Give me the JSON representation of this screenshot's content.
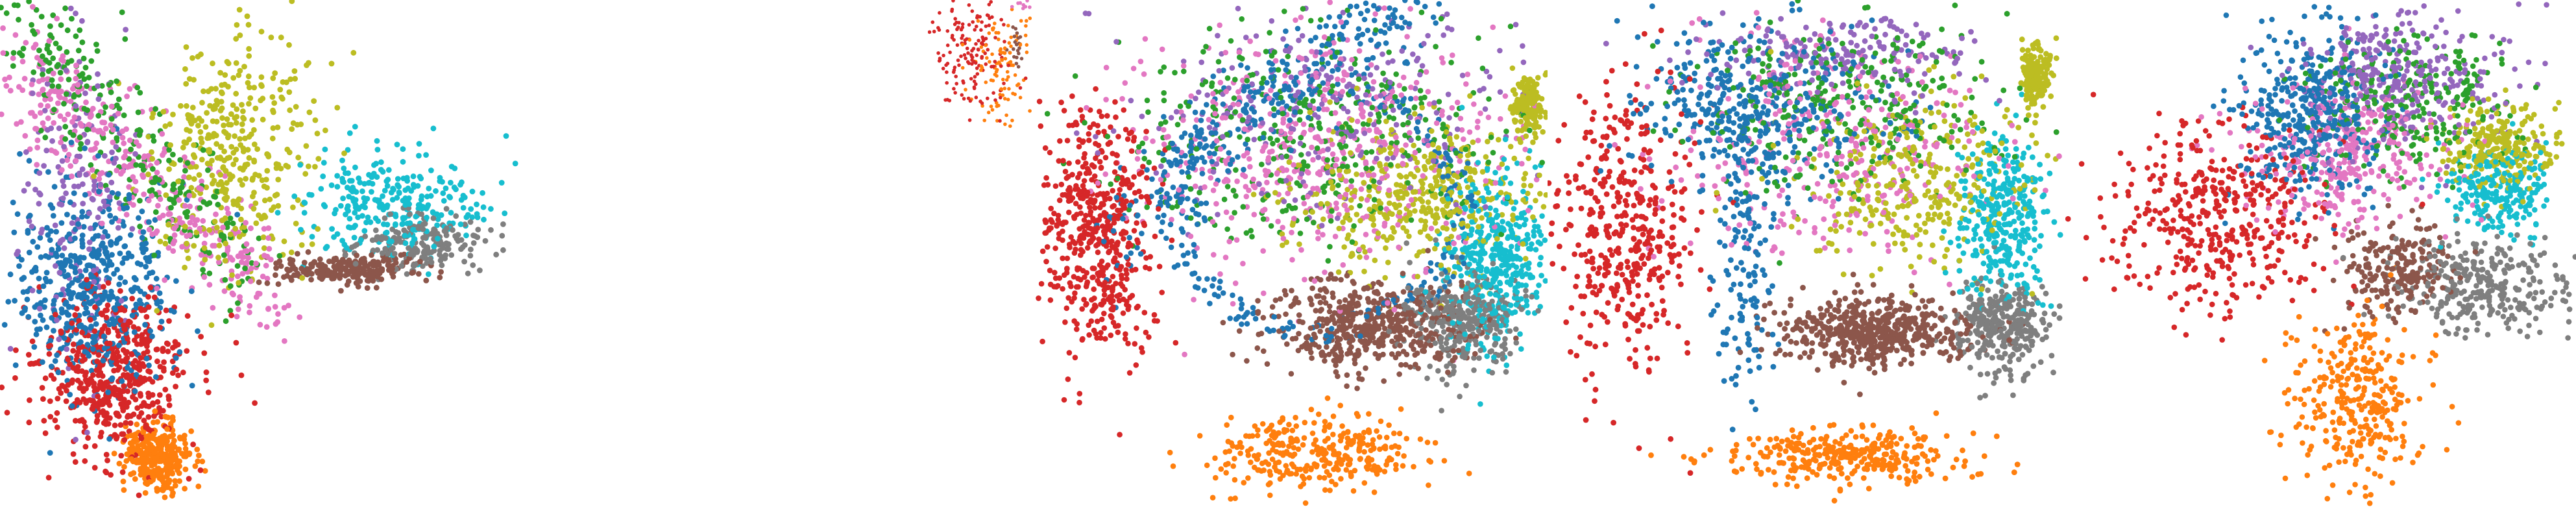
{
  "figure": {
    "background": "#ffffff",
    "axes_visible": false,
    "legend": "none",
    "grid": false
  },
  "chart_data": [
    {
      "type": "scatter",
      "xlim": [
        0,
        1
      ],
      "ylim": [
        0,
        1
      ],
      "groups": [
        {
          "color": "#bcbd22",
          "center": [
            0.45,
            0.3
          ],
          "spread": [
            0.14,
            0.2
          ],
          "shape": "blob",
          "count": 380
        },
        {
          "color": "#2ca02c",
          "center": [
            0.25,
            0.28
          ],
          "spread": [
            0.2,
            0.22
          ],
          "shape": "band",
          "count": 280
        },
        {
          "color": "#e377c2",
          "center": [
            0.28,
            0.35
          ],
          "spread": [
            0.22,
            0.2
          ],
          "shape": "band",
          "count": 380
        },
        {
          "color": "#1f77b4",
          "center": [
            0.18,
            0.55
          ],
          "spread": [
            0.14,
            0.18
          ],
          "shape": "blob",
          "count": 520
        },
        {
          "color": "#9467bd",
          "center": [
            0.15,
            0.4
          ],
          "spread": [
            0.1,
            0.28
          ],
          "shape": "blob",
          "count": 160
        },
        {
          "color": "#d62728",
          "center": [
            0.22,
            0.72
          ],
          "spread": [
            0.13,
            0.15
          ],
          "shape": "blob",
          "count": 520
        },
        {
          "color": "#ff7f0e",
          "center": [
            0.3,
            0.88
          ],
          "spread": [
            0.06,
            0.06
          ],
          "shape": "blob",
          "count": 320
        },
        {
          "color": "#17becf",
          "center": [
            0.75,
            0.4
          ],
          "spread": [
            0.17,
            0.08
          ],
          "shape": "blob",
          "count": 280
        },
        {
          "color": "#7f7f7f",
          "center": [
            0.82,
            0.47
          ],
          "spread": [
            0.12,
            0.05
          ],
          "shape": "blob",
          "count": 180
        },
        {
          "color": "#8c564b",
          "center": [
            0.67,
            0.52
          ],
          "spread": [
            0.14,
            0.025
          ],
          "shape": "blob",
          "count": 220
        }
      ]
    },
    {
      "type": "scatter",
      "xlim": [
        0,
        1
      ],
      "ylim": [
        0,
        1
      ],
      "groups": [
        {
          "color": "#d62728",
          "center": [
            0.4,
            0.4
          ],
          "spread": [
            0.35,
            0.45
          ],
          "shape": "blob",
          "count": 160
        },
        {
          "color": "#ff7f0e",
          "center": [
            0.7,
            0.55
          ],
          "spread": [
            0.3,
            0.45
          ],
          "shape": "blob",
          "count": 110
        },
        {
          "color": "#8c564b",
          "center": [
            0.85,
            0.35
          ],
          "spread": [
            0.1,
            0.15
          ],
          "shape": "blob",
          "count": 20
        },
        {
          "color": "#e377c2",
          "center": [
            0.9,
            0.05
          ],
          "spread": [
            0.08,
            0.05
          ],
          "shape": "blob",
          "count": 10
        }
      ]
    },
    {
      "type": "scatter",
      "xlim": [
        0,
        1
      ],
      "ylim": [
        0,
        1
      ],
      "groups": [
        {
          "color": "#1f77b4",
          "arc": [
            0.15,
            0.5,
            0.75,
            0.0
          ],
          "spread": [
            0.04,
            0.05
          ],
          "shape": "arc",
          "count": 300
        },
        {
          "color": "#1f77b4",
          "center": [
            0.55,
            0.4
          ],
          "spread": [
            0.3,
            0.25
          ],
          "shape": "ring",
          "count": 250
        },
        {
          "color": "#9467bd",
          "center": [
            0.55,
            0.2
          ],
          "spread": [
            0.35,
            0.18
          ],
          "shape": "blob",
          "count": 250
        },
        {
          "color": "#e377c2",
          "center": [
            0.55,
            0.3
          ],
          "spread": [
            0.35,
            0.22
          ],
          "shape": "blob",
          "count": 500
        },
        {
          "color": "#2ca02c",
          "center": [
            0.55,
            0.25
          ],
          "spread": [
            0.35,
            0.2
          ],
          "shape": "blob",
          "count": 380
        },
        {
          "color": "#bcbd22",
          "center": [
            0.75,
            0.38
          ],
          "spread": [
            0.2,
            0.14
          ],
          "shape": "blob",
          "count": 420
        },
        {
          "color": "#bcbd22",
          "center": [
            0.96,
            0.2
          ],
          "spread": [
            0.03,
            0.05
          ],
          "shape": "blob",
          "count": 160
        },
        {
          "color": "#17becf",
          "center": [
            0.9,
            0.5
          ],
          "spread": [
            0.09,
            0.15
          ],
          "shape": "blob",
          "count": 420
        },
        {
          "color": "#8c564b",
          "center": [
            0.66,
            0.63
          ],
          "spread": [
            0.17,
            0.08
          ],
          "shape": "blob",
          "count": 520
        },
        {
          "color": "#7f7f7f",
          "center": [
            0.84,
            0.62
          ],
          "spread": [
            0.11,
            0.09
          ],
          "shape": "blob",
          "count": 320
        },
        {
          "color": "#d62728",
          "center": [
            0.12,
            0.45
          ],
          "spread": [
            0.1,
            0.22
          ],
          "shape": "blob",
          "count": 520
        },
        {
          "color": "#ff7f0e",
          "center": [
            0.55,
            0.87
          ],
          "spread": [
            0.2,
            0.07
          ],
          "shape": "blob",
          "count": 320
        }
      ]
    },
    {
      "type": "scatter",
      "xlim": [
        0,
        1
      ],
      "ylim": [
        0,
        1
      ],
      "groups": [
        {
          "color": "#1f77b4",
          "center": [
            0.4,
            0.2
          ],
          "spread": [
            0.22,
            0.15
          ],
          "shape": "blob",
          "count": 380
        },
        {
          "color": "#1f77b4",
          "center": [
            0.38,
            0.5
          ],
          "spread": [
            0.05,
            0.25
          ],
          "shape": "blob",
          "count": 140
        },
        {
          "color": "#9467bd",
          "center": [
            0.55,
            0.1
          ],
          "spread": [
            0.25,
            0.08
          ],
          "shape": "blob",
          "count": 180
        },
        {
          "color": "#2ca02c",
          "center": [
            0.55,
            0.2
          ],
          "spread": [
            0.28,
            0.15
          ],
          "shape": "blob",
          "count": 300
        },
        {
          "color": "#e377c2",
          "center": [
            0.55,
            0.28
          ],
          "spread": [
            0.3,
            0.2
          ],
          "shape": "blob",
          "count": 320
        },
        {
          "color": "#bcbd22",
          "center": [
            0.72,
            0.35
          ],
          "spread": [
            0.2,
            0.15
          ],
          "shape": "blob",
          "count": 320
        },
        {
          "color": "#bcbd22",
          "center": [
            0.94,
            0.15
          ],
          "spread": [
            0.025,
            0.06
          ],
          "shape": "blob",
          "count": 160
        },
        {
          "color": "#17becf",
          "center": [
            0.88,
            0.42
          ],
          "spread": [
            0.08,
            0.14
          ],
          "shape": "blob",
          "count": 320
        },
        {
          "color": "#7f7f7f",
          "center": [
            0.88,
            0.63
          ],
          "spread": [
            0.08,
            0.08
          ],
          "shape": "blob",
          "count": 300
        },
        {
          "color": "#8c564b",
          "center": [
            0.62,
            0.64
          ],
          "spread": [
            0.17,
            0.06
          ],
          "shape": "blob",
          "count": 520
        },
        {
          "color": "#d62728",
          "center": [
            0.15,
            0.45
          ],
          "spread": [
            0.12,
            0.25
          ],
          "shape": "blob",
          "count": 420
        },
        {
          "color": "#ff7f0e",
          "center": [
            0.58,
            0.88
          ],
          "spread": [
            0.22,
            0.05
          ],
          "shape": "blob",
          "count": 320
        }
      ]
    },
    {
      "type": "scatter",
      "xlim": [
        0,
        1
      ],
      "ylim": [
        0,
        1
      ],
      "groups": [
        {
          "color": "#9467bd",
          "center": [
            0.65,
            0.15
          ],
          "spread": [
            0.18,
            0.12
          ],
          "shape": "blob",
          "count": 320
        },
        {
          "color": "#1f77b4",
          "center": [
            0.48,
            0.22
          ],
          "spread": [
            0.12,
            0.15
          ],
          "shape": "blob",
          "count": 420
        },
        {
          "color": "#2ca02c",
          "center": [
            0.68,
            0.2
          ],
          "spread": [
            0.18,
            0.12
          ],
          "shape": "blob",
          "count": 260
        },
        {
          "color": "#e377c2",
          "center": [
            0.55,
            0.3
          ],
          "spread": [
            0.18,
            0.12
          ],
          "shape": "blob",
          "count": 320
        },
        {
          "color": "#bcbd22",
          "center": [
            0.85,
            0.28
          ],
          "spread": [
            0.1,
            0.07
          ],
          "shape": "blob",
          "count": 260
        },
        {
          "color": "#17becf",
          "center": [
            0.86,
            0.37
          ],
          "spread": [
            0.1,
            0.07
          ],
          "shape": "blob",
          "count": 220
        },
        {
          "color": "#7f7f7f",
          "center": [
            0.82,
            0.55
          ],
          "spread": [
            0.14,
            0.08
          ],
          "shape": "blob",
          "count": 300
        },
        {
          "color": "#8c564b",
          "center": [
            0.65,
            0.52
          ],
          "spread": [
            0.1,
            0.08
          ],
          "shape": "blob",
          "count": 220
        },
        {
          "color": "#d62728",
          "center": [
            0.3,
            0.42
          ],
          "spread": [
            0.2,
            0.16
          ],
          "shape": "blob",
          "count": 420
        },
        {
          "color": "#ff7f0e",
          "center": [
            0.57,
            0.78
          ],
          "spread": [
            0.12,
            0.14
          ],
          "shape": "blob",
          "count": 320
        }
      ]
    }
  ]
}
